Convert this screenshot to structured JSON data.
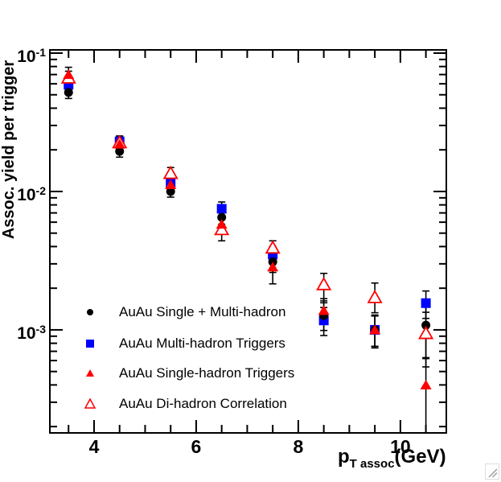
{
  "chart_data": {
    "type": "scatter",
    "title": "",
    "xlabel": "p_T assoc (GeV)",
    "ylabel": "Assoc. yield per trigger",
    "y_scale": "log",
    "x_range": [
      3.134,
      10.9
    ],
    "y_range": [
      0.00018,
      0.1055
    ],
    "grid": false,
    "legend_position": "bottom-left-inside",
    "x": [
      3.5,
      4.5,
      5.5,
      6.5,
      7.5,
      8.5,
      9.5,
      10.5
    ],
    "series": [
      {
        "name": "AuAu Single + Multi-hadron",
        "marker": "filled-circle",
        "color": "#000000",
        "values": [
          0.052,
          0.0195,
          0.01,
          0.0065,
          0.0031,
          0.00127,
          0.001,
          0.00108
        ],
        "err_hi": [
          0.006,
          0.002,
          0.001,
          0.0008,
          0.0005,
          0.0003,
          0.00028,
          0.00045
        ],
        "err_lo": [
          0.005,
          0.0018,
          0.0009,
          0.0007,
          0.0005,
          0.00028,
          0.00026,
          0.00045
        ]
      },
      {
        "name": "AuAu Multi-hadron Triggers",
        "marker": "filled-square",
        "color": "#0000ff",
        "values": [
          0.059,
          0.023,
          0.0115,
          0.0075,
          0.0035,
          0.00117,
          0.001,
          0.00156
        ],
        "err_hi": [
          0.007,
          0.0022,
          0.0011,
          0.0009,
          0.0005,
          0.00028,
          0.00026,
          0.00035
        ],
        "err_lo": [
          0.006,
          0.002,
          0.001,
          0.0008,
          0.0005,
          0.00026,
          0.00024,
          0.00035
        ]
      },
      {
        "name": "AuAu Single-hadron Triggers",
        "marker": "filled-triangle",
        "color": "#ff0000",
        "values": [
          0.07,
          0.022,
          0.0112,
          0.0058,
          0.00285,
          0.00138,
          0.001,
          0.0004
        ],
        "err_hi": [
          0.009,
          0.0022,
          0.0011,
          0.0008,
          0.0006,
          0.0003,
          0.00026,
          0.00022
        ],
        "err_lo": [
          0.008,
          0.002,
          0.001,
          0.0007,
          0.0007,
          0.00028,
          0.00024,
          0.00024
        ]
      },
      {
        "name": "AuAu Di-hadron Correlation",
        "marker": "open-triangle",
        "color": "#ff0000",
        "values": [
          0.066,
          0.0225,
          0.0135,
          0.0053,
          0.0039,
          0.00212,
          0.00171,
          0.00094
        ],
        "err_hi": [
          0.008,
          0.0023,
          0.0014,
          0.001,
          0.0005,
          0.00044,
          0.00047,
          0.0004
        ],
        "err_lo": [
          0.007,
          0.0021,
          0.0013,
          0.0009,
          0.0012,
          0.0005,
          0.00038,
          0.0004
        ]
      }
    ]
  },
  "axes": {
    "y_title": "Assoc. yield per trigger",
    "x_title_main": "p",
    "x_title_sub": "T assoc",
    "x_title_unit": "(GeV)",
    "y_ticks": [
      {
        "base": "10",
        "exp": "-1",
        "v": 0.1
      },
      {
        "base": "10",
        "exp": "-2",
        "v": 0.01
      },
      {
        "base": "10",
        "exp": "-3",
        "v": 0.001
      }
    ],
    "x_ticks": [
      {
        "label": "4",
        "v": 4
      },
      {
        "label": "6",
        "v": 6
      },
      {
        "label": "8",
        "v": 8
      },
      {
        "label": "10",
        "v": 10
      }
    ]
  },
  "legend": {
    "items": [
      {
        "label": "AuAu Single + Multi-hadron",
        "marker": "filled-circle",
        "color": "#000000"
      },
      {
        "label": "AuAu Multi-hadron Triggers",
        "marker": "filled-square",
        "color": "#0000ff"
      },
      {
        "label": "AuAu Single-hadron Triggers",
        "marker": "filled-triangle",
        "color": "#ff0000"
      },
      {
        "label": "AuAu Di-hadron Correlation",
        "marker": "open-triangle",
        "color": "#ff0000"
      }
    ]
  },
  "colors": {
    "frame": "#000000",
    "background": "#ffffff",
    "error_bar": "#000000",
    "grip": "#999999"
  }
}
